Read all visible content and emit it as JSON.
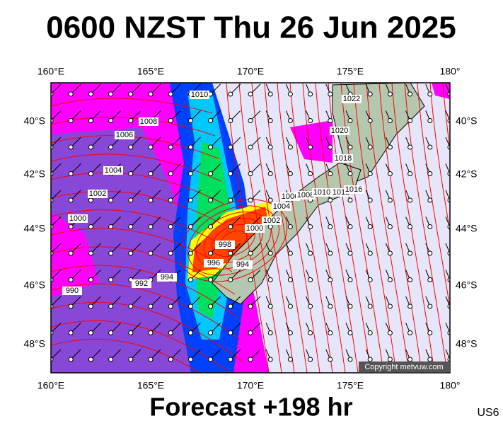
{
  "header": {
    "title": "0600 NZST Thu 26 Jun 2025"
  },
  "axes": {
    "lon_top": [
      "160°E",
      "165°E",
      "170°E",
      "175°E",
      "180°"
    ],
    "lon_bottom": [
      "160°E",
      "165°E",
      "170°E",
      "175°E",
      "180°"
    ],
    "lat_left": [
      "40°S",
      "42°S",
      "44°S",
      "46°S",
      "48°S"
    ],
    "lat_right": [
      "40°S",
      "42°S",
      "44°S",
      "46°S",
      "48°S"
    ]
  },
  "isobar_labels": [
    "1010",
    "1008",
    "1006",
    "1004",
    "1002",
    "1000",
    "990",
    "992",
    "994",
    "996",
    "998",
    "1000",
    "1002",
    "1004",
    "1006",
    "1008",
    "1010",
    "1012",
    "1016",
    "1018",
    "1020",
    "1022",
    "994"
  ],
  "copyright": "Copyright metvuw.com",
  "footer": {
    "forecast": "Forecast +198 hr",
    "code": "US6"
  }
}
